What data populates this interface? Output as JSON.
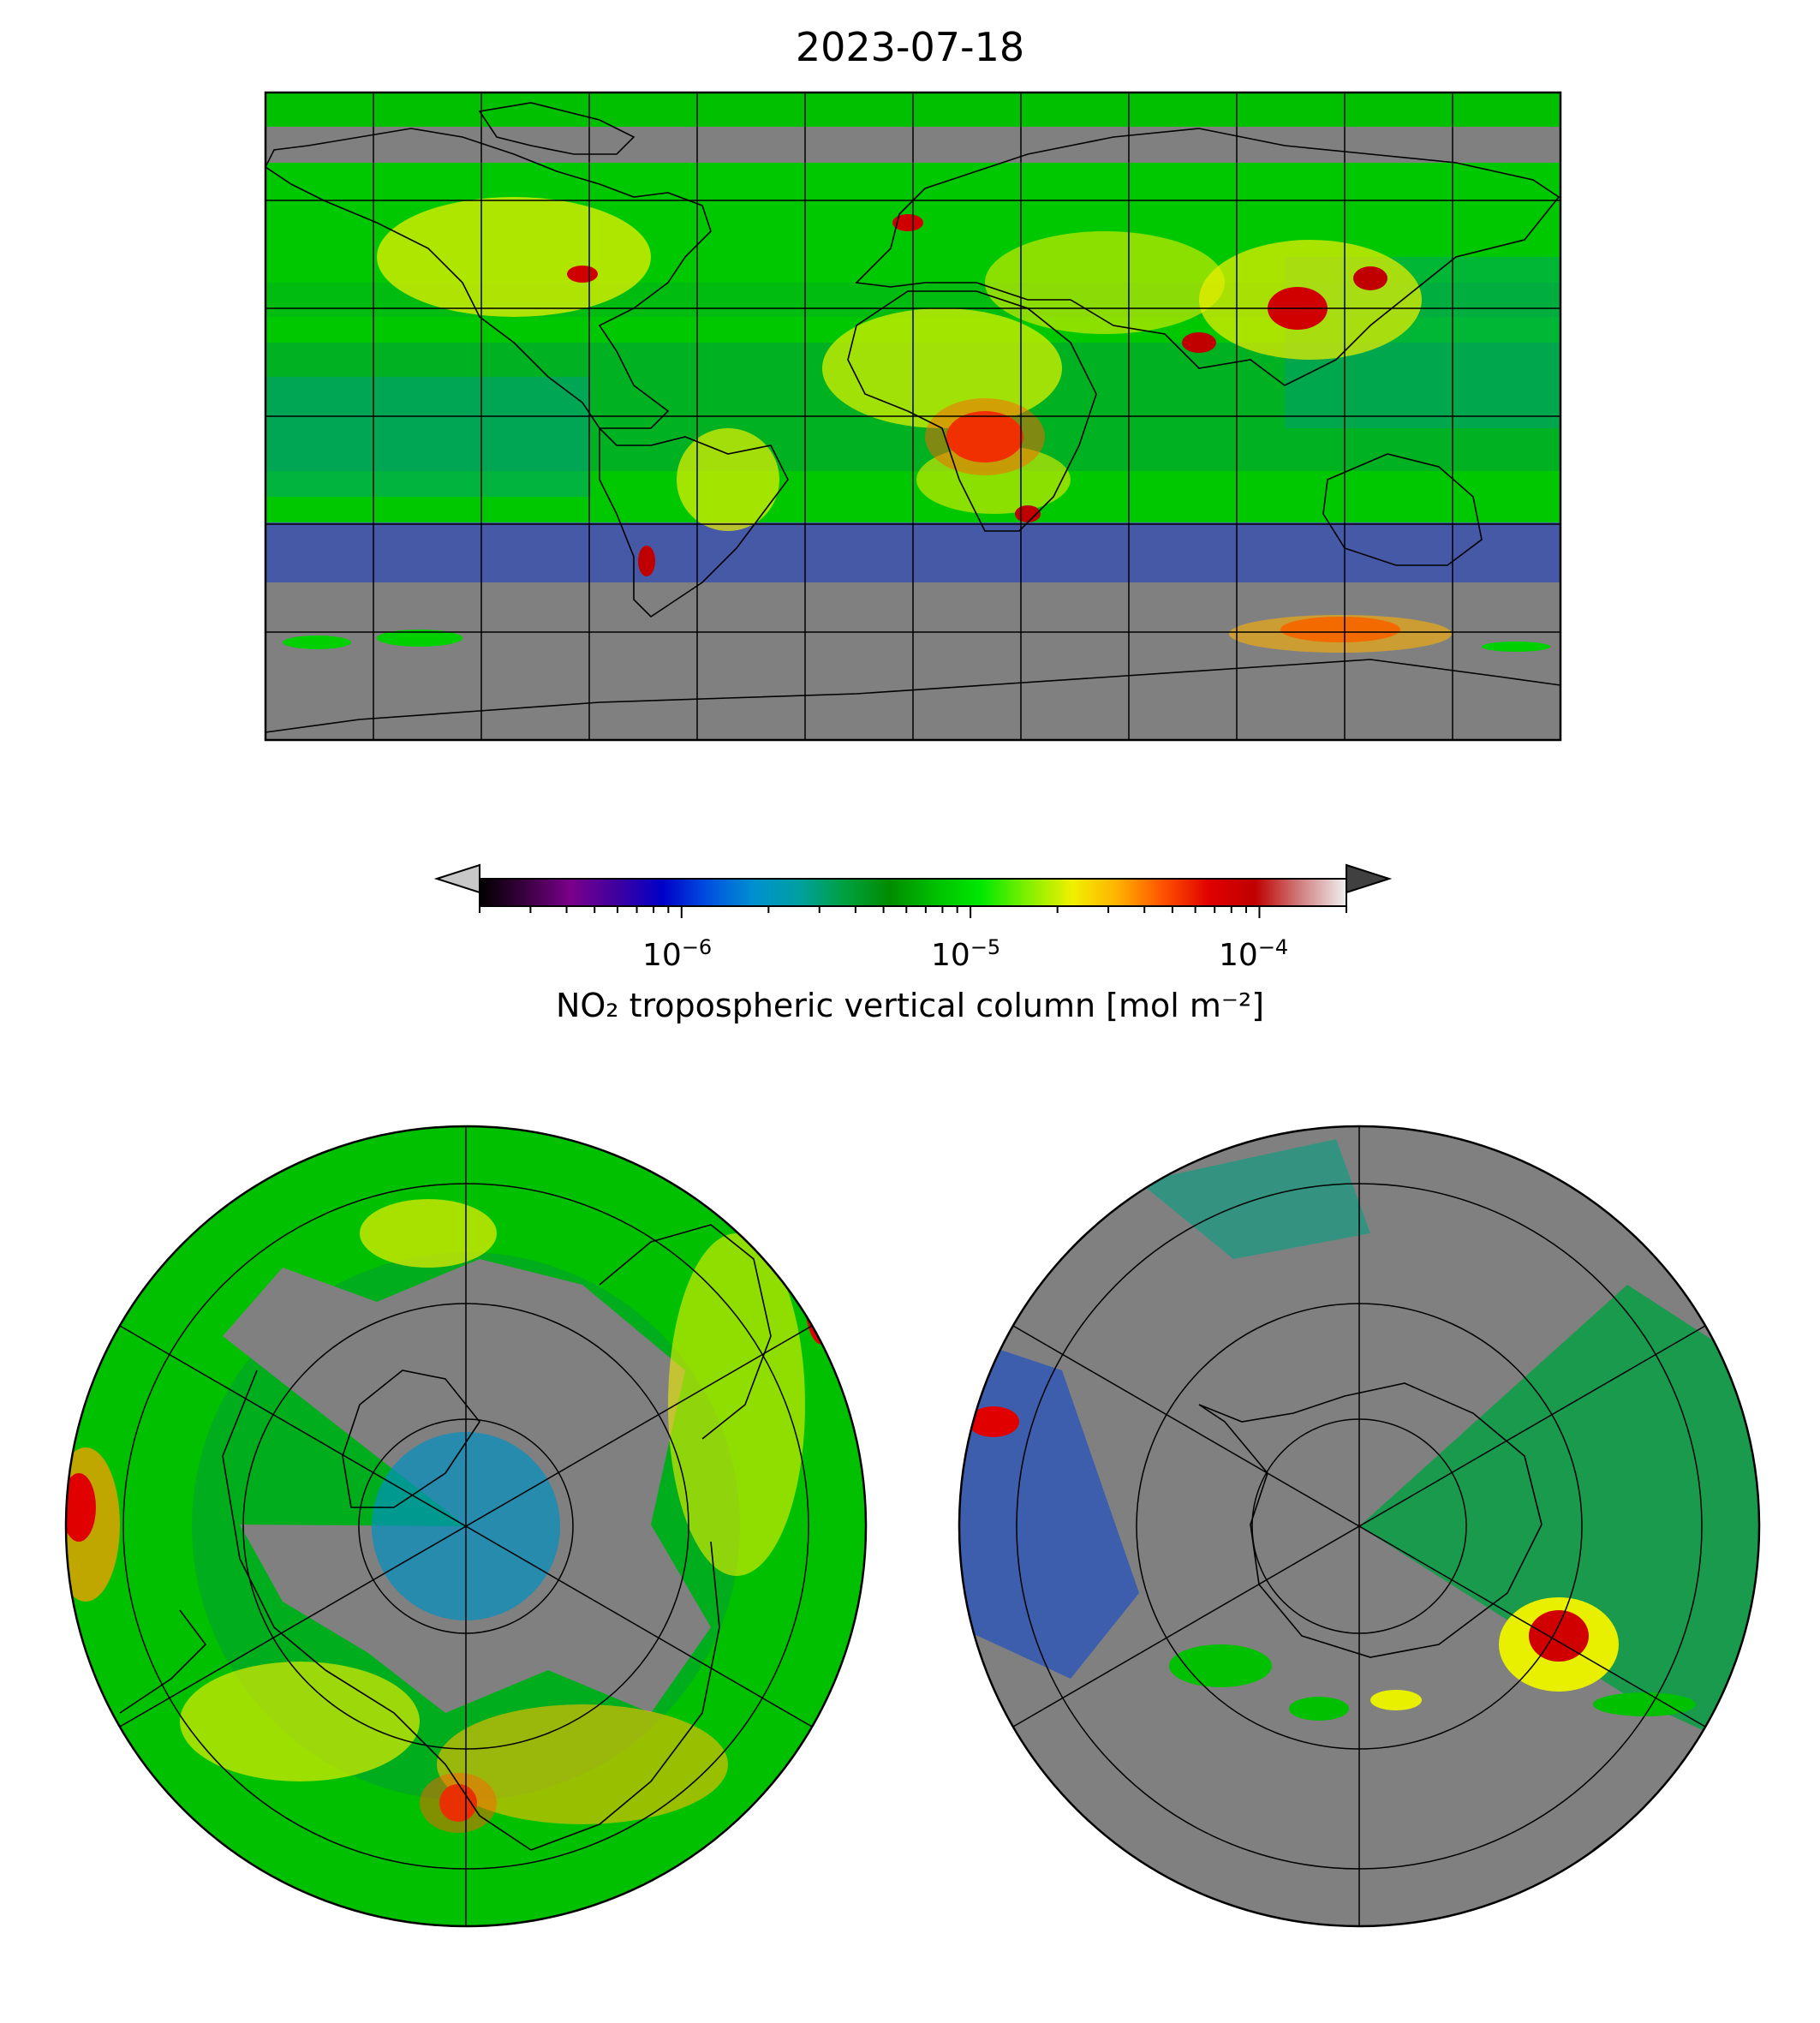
{
  "title": "2023-07-18",
  "colorbar": {
    "label": "NO₂ tropospheric vertical column [mol m⁻²]",
    "scale": "log",
    "range": [
      2e-07,
      0.0002
    ],
    "ticks": [
      {
        "base": "10",
        "exp": "−6"
      },
      {
        "base": "10",
        "exp": "−5"
      },
      {
        "base": "10",
        "exp": "−4"
      }
    ],
    "extend": "both",
    "under_color": "#c8c8c8",
    "over_color": "#404040",
    "colormap": [
      "#000000",
      "#3a0040",
      "#7a008a",
      "#4000a0",
      "#0000c8",
      "#0050e0",
      "#0090d0",
      "#00a0a0",
      "#00a040",
      "#008c00",
      "#00c000",
      "#00e800",
      "#80f000",
      "#f0f000",
      "#ffb000",
      "#ff5000",
      "#e00000",
      "#c00000",
      "#d08080",
      "#f0f0f0"
    ]
  },
  "maps": [
    {
      "projection": "Plate Carrée (global)",
      "graticule_spacing_deg": 30
    },
    {
      "projection": "North Polar Stereographic"
    },
    {
      "projection": "South Polar Stereographic"
    }
  ],
  "colors": {
    "no_data": "#808080",
    "coastline": "#000000",
    "graticule": "#000000"
  }
}
